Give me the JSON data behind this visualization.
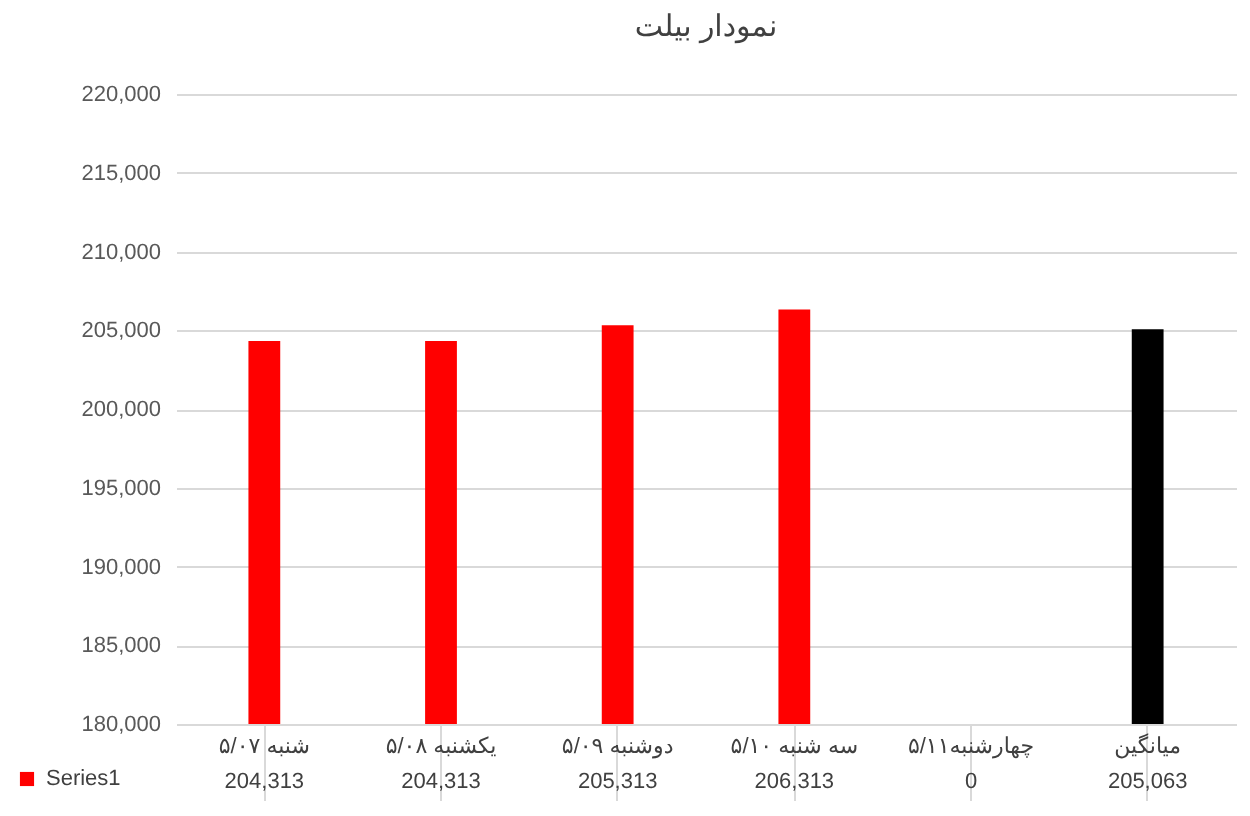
{
  "chart_data": {
    "type": "bar",
    "title": "نمودار بیلت",
    "categories": [
      "شنبه ۵/۰۷",
      "یکشنبه ۵/۰۸",
      "دوشنبه ۵/۰۹",
      "سه شنبه ۵/۱۰",
      "چهارشنبه۵/۱۱",
      "میانگین"
    ],
    "series": [
      {
        "name": "Series1",
        "color": "#ff0000",
        "colors": [
          "#ff0000",
          "#ff0000",
          "#ff0000",
          "#ff0000",
          "#ff0000",
          "#000000"
        ],
        "values": [
          204313,
          204313,
          205313,
          206313,
          null,
          205063
        ],
        "value_labels": [
          "204,313",
          "204,313",
          "205,313",
          "206,313",
          "0",
          "205,063"
        ]
      }
    ],
    "ylim": [
      180000,
      220000
    ],
    "yticks": [
      {
        "value": 180000,
        "label": "180,000"
      },
      {
        "value": 185000,
        "label": "185,000"
      },
      {
        "value": 190000,
        "label": "190,000"
      },
      {
        "value": 195000,
        "label": "195,000"
      },
      {
        "value": 200000,
        "label": "200,000"
      },
      {
        "value": 205000,
        "label": "205,000"
      },
      {
        "value": 210000,
        "label": "210,000"
      },
      {
        "value": 215000,
        "label": "215,000"
      },
      {
        "value": 220000,
        "label": "220,000"
      }
    ],
    "grid": "y",
    "legend": "bottom left"
  }
}
